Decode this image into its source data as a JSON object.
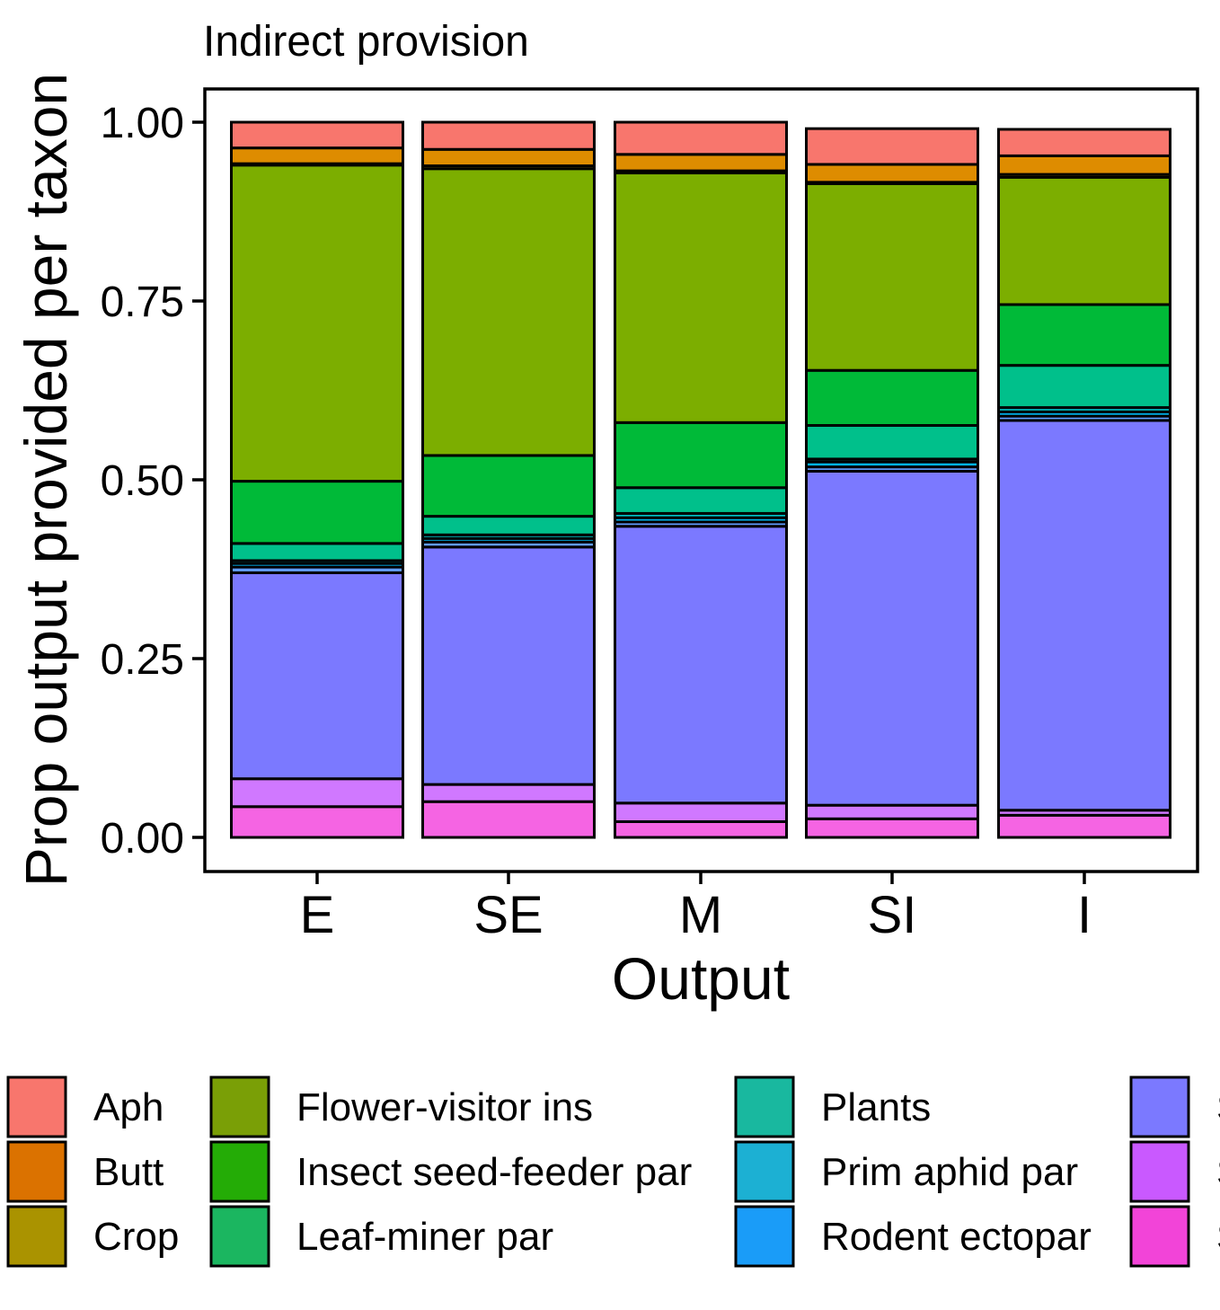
{
  "chart_data": {
    "type": "bar",
    "stacked": true,
    "title": "Indirect provision",
    "xlabel": "Output",
    "ylabel": "Prop output provided per taxon",
    "ylim": [
      0,
      1.045
    ],
    "yticks": [
      "0.00",
      "0.25",
      "0.50",
      "0.75",
      "1.00"
    ],
    "categories": [
      "E",
      "SE",
      "M",
      "SI",
      "I"
    ],
    "legend_position": "bottom",
    "series": [
      {
        "name": "Aph",
        "color": "#F8766D",
        "values": [
          0.036,
          0.038,
          0.045,
          0.05,
          0.037
        ]
      },
      {
        "name": "Butt",
        "color": "#DE8C00",
        "values": [
          0.022,
          0.023,
          0.023,
          0.025,
          0.026
        ]
      },
      {
        "name": "Crop",
        "color": "#B79F00",
        "values": [
          0.002,
          0.004,
          0.003,
          0.002,
          0.004
        ]
      },
      {
        "name": "Flower-visitor ins",
        "color": "#7CAE00",
        "values": [
          0.442,
          0.401,
          0.349,
          0.261,
          0.178
        ]
      },
      {
        "name": "Insect seed-feeder par",
        "color": "#00BA38",
        "values": [
          0.087,
          0.085,
          0.091,
          0.077,
          0.085
        ]
      },
      {
        "name": "Leaf-miner par",
        "color": "#00C08B",
        "values": [
          0.024,
          0.026,
          0.036,
          0.047,
          0.059
        ]
      },
      {
        "name": "Plants",
        "color": "#00BFC4",
        "values": [
          0.004,
          0.005,
          0.006,
          0.004,
          0.006
        ]
      },
      {
        "name": "Prim aphid par",
        "color": "#00B4F0",
        "values": [
          0.005,
          0.005,
          0.006,
          0.007,
          0.006
        ]
      },
      {
        "name": "Rodent ectopar",
        "color": "#619CFF",
        "values": [
          0.008,
          0.007,
          0.006,
          0.006,
          0.006
        ]
      },
      {
        "name": "Seed-feeding ins",
        "color": "#7B79FF",
        "values": [
          0.288,
          0.332,
          0.387,
          0.467,
          0.545
        ]
      },
      {
        "name": "Seed-feeding birds",
        "color": "#D078FF",
        "values": [
          0.039,
          0.024,
          0.026,
          0.019,
          0.007
        ]
      },
      {
        "name": "Seed-feeding rodents",
        "color": "#F564E3",
        "values": [
          0.043,
          0.05,
          0.022,
          0.026,
          0.031
        ]
      }
    ]
  },
  "legend_display": [
    {
      "label": "Aph",
      "color": "#F8766D"
    },
    {
      "label": "Butt",
      "color": "#DB7200"
    },
    {
      "label": "Crop",
      "color": "#AA9300"
    },
    {
      "label": "Flower-visitor ins",
      "color": "#7A9F06"
    },
    {
      "label": "Insect seed-feeder par",
      "color": "#24AC06"
    },
    {
      "label": "Leaf-miner par",
      "color": "#1BB660"
    },
    {
      "label": "Plants",
      "color": "#19B89F"
    },
    {
      "label": "Prim aphid par",
      "color": "#1CB0D3"
    },
    {
      "label": "Rodent ectopar",
      "color": "#1A9CF8"
    },
    {
      "label": "S",
      "color": "#7B79FF"
    },
    {
      "label": "S",
      "color": "#C959FF"
    },
    {
      "label": "S",
      "color": "#F244D8"
    }
  ]
}
